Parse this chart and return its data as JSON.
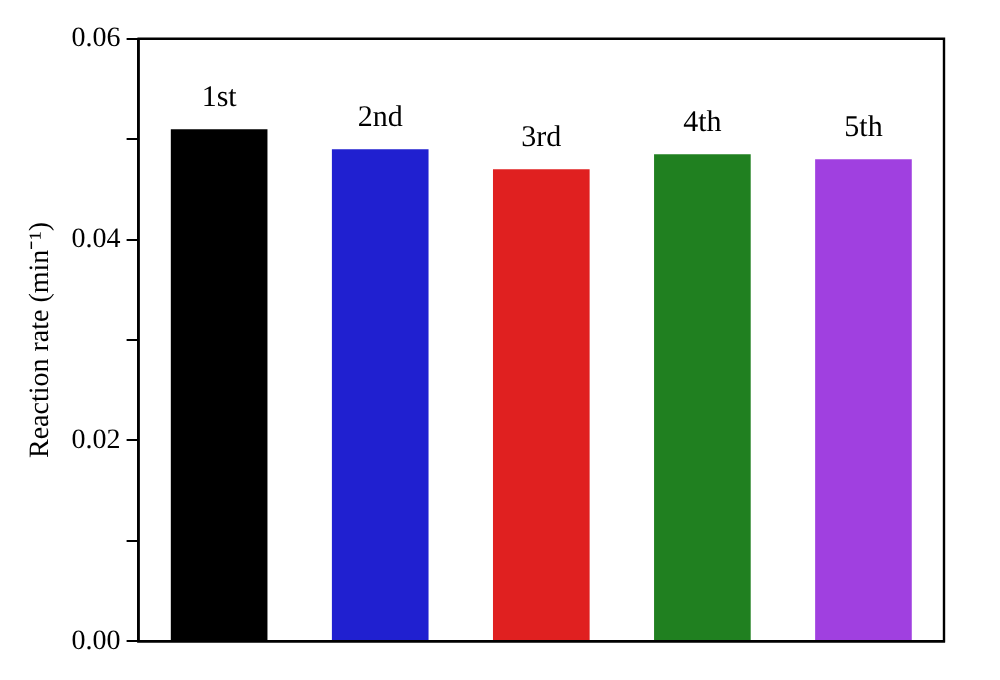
{
  "chart_data": {
    "type": "bar",
    "ylabel": "Reaction rate (min⁻¹)",
    "categories": [
      "1st",
      "2nd",
      "3rd",
      "4th",
      "5th"
    ],
    "values": [
      0.051,
      0.049,
      0.047,
      0.0485,
      0.048
    ],
    "colors": [
      "#000000",
      "#2020d0",
      "#e02020",
      "#208020",
      "#a040e0"
    ],
    "ylim": [
      0,
      0.06
    ],
    "yticks": [
      {
        "value": 0,
        "label": "0.00"
      },
      {
        "value": 0.01,
        "label": null
      },
      {
        "value": 0.02,
        "label": "0.02"
      },
      {
        "value": 0.03,
        "label": null
      },
      {
        "value": 0.04,
        "label": "0.04"
      },
      {
        "value": 0.05,
        "label": null
      },
      {
        "value": 0.06,
        "label": "0.06"
      }
    ],
    "tick_labels": "y",
    "grid": false,
    "legend": false
  }
}
